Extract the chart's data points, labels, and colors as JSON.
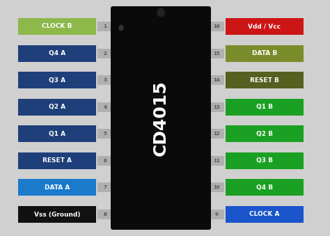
{
  "bg_color": "#d0d0d0",
  "chip_color": "#0a0a0a",
  "chip_label": "CD4015",
  "chip_label_color": "#ffffff",
  "left_pins": [
    {
      "num": "1",
      "label": "CLOCK B",
      "color": "#8db84a"
    },
    {
      "num": "2",
      "label": "Q4 A",
      "color": "#1e3f7a"
    },
    {
      "num": "3",
      "label": "Q3 A",
      "color": "#1e3f7a"
    },
    {
      "num": "4",
      "label": "Q2 A",
      "color": "#1e3f7a"
    },
    {
      "num": "5",
      "label": "Q1 A",
      "color": "#1e3f7a"
    },
    {
      "num": "6",
      "label": "RESET A",
      "color": "#1e3f7a"
    },
    {
      "num": "7",
      "label": "DATA A",
      "color": "#1a7acc"
    },
    {
      "num": "8",
      "label": "Vss (Ground)",
      "color": "#111111"
    }
  ],
  "right_pins": [
    {
      "num": "16",
      "label": "Vdd / Vcc",
      "color": "#cc1515"
    },
    {
      "num": "15",
      "label": "DATA B",
      "color": "#7a8c2a"
    },
    {
      "num": "14",
      "label": "RESET B",
      "color": "#556020"
    },
    {
      "num": "13",
      "label": "Q1 B",
      "color": "#1aa022"
    },
    {
      "num": "12",
      "label": "Q2 B",
      "color": "#1aa022"
    },
    {
      "num": "11",
      "label": "Q3 B",
      "color": "#1aa022"
    },
    {
      "num": "10",
      "label": "Q4 B",
      "color": "#1aa022"
    },
    {
      "num": "9",
      "label": "CLOCK A",
      "color": "#1a55cc"
    }
  ],
  "connector_color": "#b0b0b0",
  "text_color": "#ffffff",
  "num_color": "#555555",
  "chip_font_size": 18,
  "label_font_size": 6.5,
  "num_font_size": 5.0,
  "notch_color": "#222222"
}
